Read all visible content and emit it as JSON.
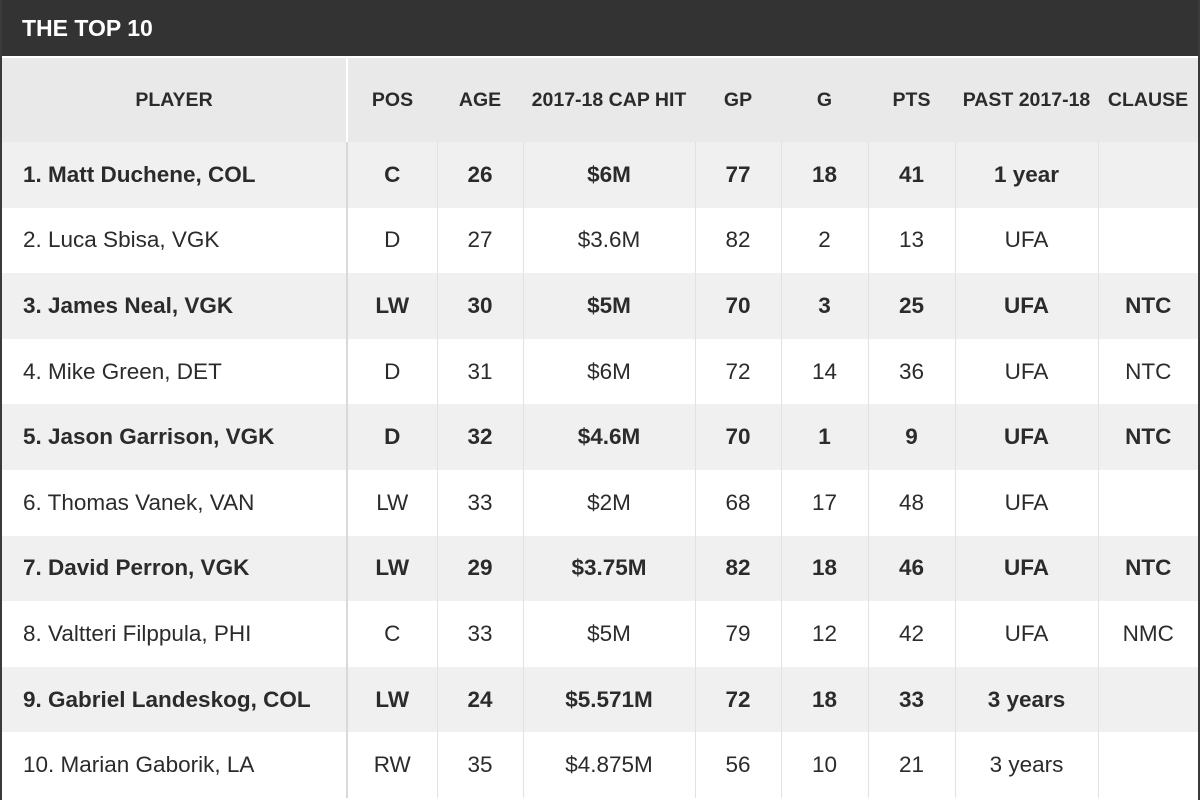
{
  "title": "THE TOP 10",
  "columns": {
    "player": "PLAYER",
    "pos": "POS",
    "age": "AGE",
    "cap": "2017-18 CAP HIT",
    "gp": "GP",
    "g": "G",
    "pts": "PTS",
    "past": "PAST 2017-18",
    "clause": "CLAUSE"
  },
  "rows": [
    {
      "player": "1. Matt Duchene, COL",
      "pos": "C",
      "age": "26",
      "cap": "$6M",
      "gp": "77",
      "g": "18",
      "pts": "41",
      "past": "1 year",
      "clause": ""
    },
    {
      "player": "2. Luca Sbisa, VGK",
      "pos": "D",
      "age": "27",
      "cap": "$3.6M",
      "gp": "82",
      "g": "2",
      "pts": "13",
      "past": "UFA",
      "clause": ""
    },
    {
      "player": "3. James Neal, VGK",
      "pos": "LW",
      "age": "30",
      "cap": "$5M",
      "gp": "70",
      "g": "3",
      "pts": "25",
      "past": "UFA",
      "clause": "NTC"
    },
    {
      "player": "4. Mike Green, DET",
      "pos": "D",
      "age": "31",
      "cap": "$6M",
      "gp": "72",
      "g": "14",
      "pts": "36",
      "past": "UFA",
      "clause": "NTC"
    },
    {
      "player": "5. Jason Garrison, VGK",
      "pos": "D",
      "age": "32",
      "cap": "$4.6M",
      "gp": "70",
      "g": "1",
      "pts": "9",
      "past": "UFA",
      "clause": "NTC"
    },
    {
      "player": "6. Thomas Vanek, VAN",
      "pos": "LW",
      "age": "33",
      "cap": "$2M",
      "gp": "68",
      "g": "17",
      "pts": "48",
      "past": "UFA",
      "clause": ""
    },
    {
      "player": "7. David Perron, VGK",
      "pos": "LW",
      "age": "29",
      "cap": "$3.75M",
      "gp": "82",
      "g": "18",
      "pts": "46",
      "past": "UFA",
      "clause": "NTC"
    },
    {
      "player": "8. Valtteri Filppula, PHI",
      "pos": "C",
      "age": "33",
      "cap": "$5M",
      "gp": "79",
      "g": "12",
      "pts": "42",
      "past": "UFA",
      "clause": "NMC"
    },
    {
      "player": "9. Gabriel Landeskog, COL",
      "pos": "LW",
      "age": "24",
      "cap": "$5.571M",
      "gp": "72",
      "g": "18",
      "pts": "33",
      "past": "3 years",
      "clause": ""
    },
    {
      "player": "10. Marian Gaborik, LA",
      "pos": "RW",
      "age": "35",
      "cap": "$4.875M",
      "gp": "56",
      "g": "10",
      "pts": "21",
      "past": "3 years",
      "clause": ""
    }
  ]
}
